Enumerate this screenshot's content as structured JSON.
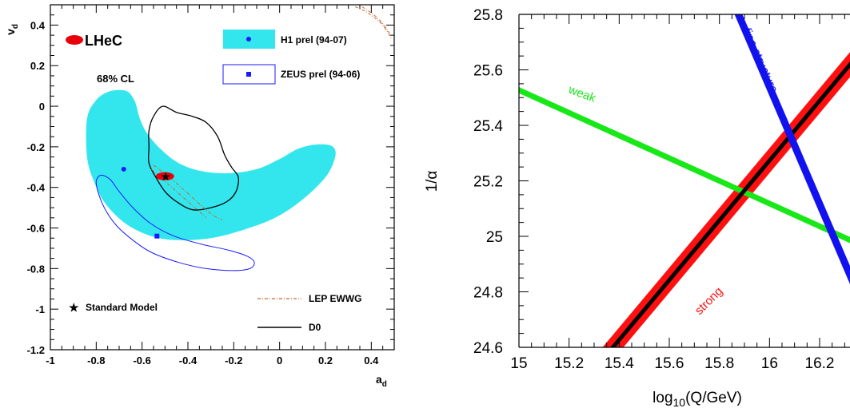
{
  "chart_data": [
    {
      "type": "scatter",
      "xlabel": "a",
      "xlabel_sub": "d",
      "ylabel": "v",
      "ylabel_sub": "d",
      "xlim": [
        -1,
        0.5
      ],
      "ylim": [
        -1.2,
        0.5
      ],
      "xticks": [
        "-1",
        "-0.8",
        "-0.6",
        "-0.4",
        "-0.2",
        "0",
        "0.2",
        "0.4"
      ],
      "yticks": [
        "0.4",
        "0.2",
        "0",
        "-0.2",
        "-0.4",
        "-0.6",
        "-0.8",
        "-1",
        "-1.2"
      ],
      "cl_label": "68% CL",
      "legend": {
        "lhec": "LHeC",
        "h1": "H1 prel (94-07)",
        "zeus": "ZEUS prel (94-06)",
        "sm": "Standard Model",
        "lep": "LEP EWWG",
        "d0": "D0"
      },
      "colors": {
        "lhec": "#e8000b",
        "h1": "#33e6ee",
        "zeus": "#1a1aff",
        "lep": "#c8692e",
        "d0": "#000000"
      },
      "points": {
        "standard_model": {
          "x": -0.5,
          "y": -0.345
        },
        "h1_central": {
          "x": -0.68,
          "y": -0.31
        },
        "zeus_central": {
          "x": -0.535,
          "y": -0.64
        },
        "lhec_central": {
          "x": -0.5,
          "y": -0.345
        }
      },
      "h1_contour": [
        [
          -0.84,
          -0.06
        ],
        [
          -0.8,
          0.03
        ],
        [
          -0.75,
          0.07
        ],
        [
          -0.7,
          0.08
        ],
        [
          -0.66,
          0.07
        ],
        [
          -0.63,
          0.02
        ],
        [
          -0.61,
          -0.06
        ],
        [
          -0.58,
          -0.13
        ],
        [
          -0.52,
          -0.21
        ],
        [
          -0.44,
          -0.28
        ],
        [
          -0.34,
          -0.32
        ],
        [
          -0.22,
          -0.33
        ],
        [
          -0.1,
          -0.31
        ],
        [
          0.0,
          -0.26
        ],
        [
          0.08,
          -0.21
        ],
        [
          0.15,
          -0.19
        ],
        [
          0.21,
          -0.19
        ],
        [
          0.24,
          -0.21
        ],
        [
          0.24,
          -0.26
        ],
        [
          0.2,
          -0.35
        ],
        [
          0.1,
          -0.46
        ],
        [
          -0.02,
          -0.55
        ],
        [
          -0.16,
          -0.61
        ],
        [
          -0.3,
          -0.65
        ],
        [
          -0.44,
          -0.66
        ],
        [
          -0.56,
          -0.64
        ],
        [
          -0.67,
          -0.58
        ],
        [
          -0.76,
          -0.48
        ],
        [
          -0.81,
          -0.37
        ],
        [
          -0.84,
          -0.25
        ]
      ],
      "zeus_contour": [
        [
          -0.8,
          -0.37
        ],
        [
          -0.79,
          -0.43
        ],
        [
          -0.76,
          -0.51
        ],
        [
          -0.71,
          -0.59
        ],
        [
          -0.64,
          -0.66
        ],
        [
          -0.56,
          -0.72
        ],
        [
          -0.44,
          -0.77
        ],
        [
          -0.32,
          -0.8
        ],
        [
          -0.2,
          -0.81
        ],
        [
          -0.13,
          -0.8
        ],
        [
          -0.11,
          -0.77
        ],
        [
          -0.14,
          -0.74
        ],
        [
          -0.22,
          -0.71
        ],
        [
          -0.34,
          -0.68
        ],
        [
          -0.46,
          -0.64
        ],
        [
          -0.56,
          -0.58
        ],
        [
          -0.64,
          -0.5
        ],
        [
          -0.7,
          -0.42
        ],
        [
          -0.74,
          -0.36
        ],
        [
          -0.78,
          -0.34
        ]
      ],
      "d0_contour": [
        [
          -0.57,
          -0.2
        ],
        [
          -0.57,
          -0.12
        ],
        [
          -0.55,
          -0.05
        ],
        [
          -0.51,
          0.0
        ],
        [
          -0.45,
          -0.03
        ],
        [
          -0.38,
          -0.05
        ],
        [
          -0.32,
          -0.08
        ],
        [
          -0.27,
          -0.15
        ],
        [
          -0.24,
          -0.24
        ],
        [
          -0.21,
          -0.3
        ],
        [
          -0.18,
          -0.35
        ],
        [
          -0.19,
          -0.42
        ],
        [
          -0.23,
          -0.47
        ],
        [
          -0.3,
          -0.5
        ],
        [
          -0.38,
          -0.51
        ],
        [
          -0.45,
          -0.47
        ],
        [
          -0.5,
          -0.42
        ],
        [
          -0.54,
          -0.35
        ],
        [
          -0.57,
          -0.28
        ]
      ],
      "lep_curves": [
        [
          [
            -0.55,
            -0.29
          ],
          [
            -0.47,
            -0.36
          ],
          [
            -0.39,
            -0.44
          ],
          [
            -0.3,
            -0.53
          ],
          [
            -0.25,
            -0.56
          ]
        ],
        [
          [
            -0.56,
            -0.31
          ],
          [
            -0.48,
            -0.39
          ],
          [
            -0.4,
            -0.47
          ],
          [
            -0.32,
            -0.55
          ]
        ],
        [
          [
            0.33,
            0.49
          ],
          [
            0.37,
            0.47
          ],
          [
            0.41,
            0.44
          ],
          [
            0.45,
            0.4
          ],
          [
            0.49,
            0.33
          ]
        ],
        [
          [
            0.36,
            0.49
          ],
          [
            0.4,
            0.46
          ],
          [
            0.44,
            0.42
          ],
          [
            0.48,
            0.36
          ]
        ]
      ],
      "lhec_ellipse": {
        "x": -0.5,
        "y": -0.345,
        "rx": 0.04,
        "ry": 0.02
      }
    },
    {
      "type": "line",
      "xlabel": "log",
      "xlabel_sub": "10",
      "xlabel_rest": "(Q/GeV)",
      "ylabel": "1/α",
      "xlim": [
        15,
        16.35
      ],
      "ylim": [
        24.6,
        25.8
      ],
      "xticks": [
        "15",
        "15.2",
        "15.4",
        "15.6",
        "15.8",
        "16",
        "16.2"
      ],
      "yticks": [
        "25.8",
        "25.6",
        "25.4",
        "25.2",
        "25",
        "24.8",
        "24.6"
      ],
      "series": [
        {
          "name": "weak",
          "color": "#18e818",
          "x": [
            15,
            16.35
          ],
          "y": [
            25.527,
            24.975
          ]
        },
        {
          "name": "fine structure",
          "color": "#1212ee",
          "x": [
            15.876,
            16.35
          ],
          "y": [
            25.8,
            24.8
          ]
        },
        {
          "name": "strong",
          "color": "#000000",
          "band_color": "#ff1010",
          "band_halfwidth": 0.045,
          "x": [
            15.375,
            16.35
          ],
          "y": [
            24.6,
            25.65
          ]
        }
      ]
    }
  ]
}
